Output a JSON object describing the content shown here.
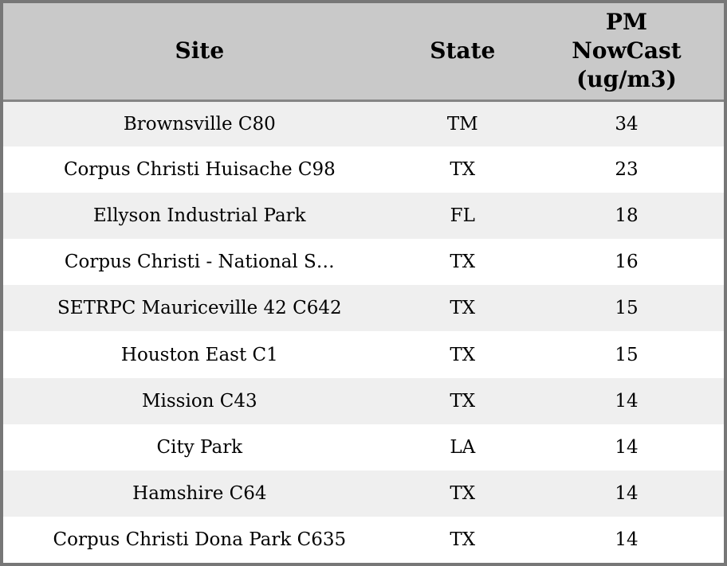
{
  "colors": {
    "header_bg": "#c9c9c9",
    "row_alt_bg": "#efefef",
    "row_bg": "#ffffff",
    "border": "#777777",
    "text": "#000000"
  },
  "chart_data": {
    "type": "table",
    "columns": [
      "Site",
      "State",
      "PM NowCast (ug/m3)"
    ],
    "header_display": [
      "Site",
      "State",
      "PM\nNowCast\n(ug/m3)"
    ],
    "rows": [
      [
        "Brownsville C80",
        "TM",
        34
      ],
      [
        "Corpus Christi Huisache C98",
        "TX",
        23
      ],
      [
        "Ellyson Industrial Park",
        "FL",
        18
      ],
      [
        "Corpus Christi - National S…",
        "TX",
        16
      ],
      [
        "SETRPC Mauriceville 42 C642",
        "TX",
        15
      ],
      [
        "Houston East C1",
        "TX",
        15
      ],
      [
        "Mission C43",
        "TX",
        14
      ],
      [
        "City Park",
        "LA",
        14
      ],
      [
        "Hamshire C64",
        "TX",
        14
      ],
      [
        "Corpus Christi Dona Park C635",
        "TX",
        14
      ]
    ]
  }
}
